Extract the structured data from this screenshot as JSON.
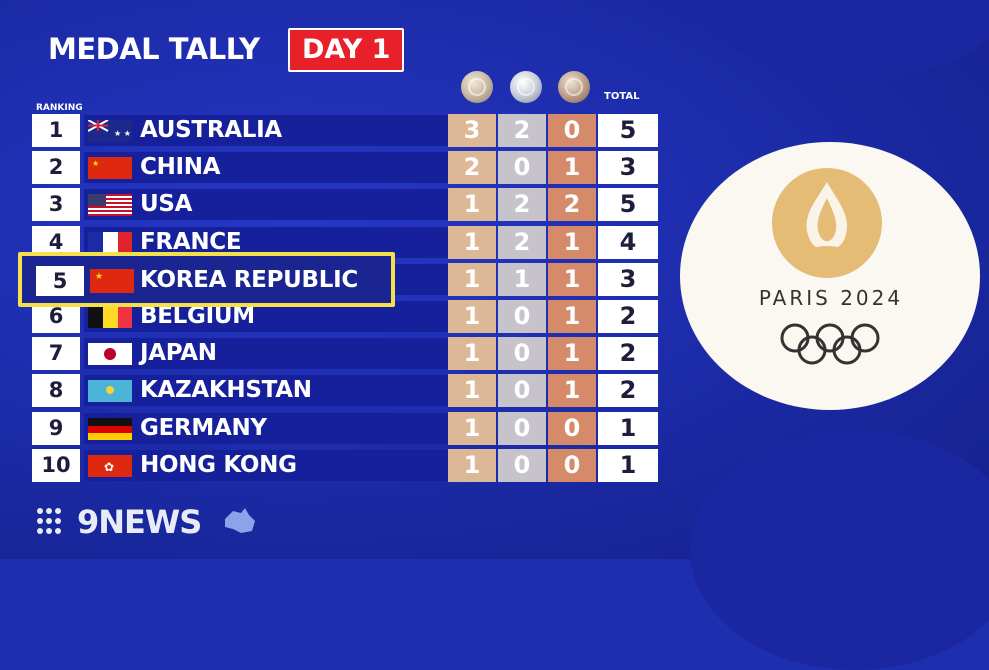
{
  "header": {
    "title": "MEDAL TALLY",
    "day": "DAY 1"
  },
  "columns": {
    "ranking": "RANKING",
    "total": "TOTAL"
  },
  "medal_icons": [
    "gold-medal-icon",
    "silver-medal-icon",
    "bronze-medal-icon"
  ],
  "colors": {
    "gold": "#dcb897",
    "silver": "#c7c3cb",
    "bronze": "#d58a6a",
    "highlight": "#f4e04a",
    "badge": "#e8202a"
  },
  "rows": [
    {
      "rank": "1",
      "country": "AUSTRALIA",
      "gold": "3",
      "silver": "2",
      "bronze": "0",
      "total": "5"
    },
    {
      "rank": "2",
      "country": "CHINA",
      "gold": "2",
      "silver": "0",
      "bronze": "1",
      "total": "3"
    },
    {
      "rank": "3",
      "country": "USA",
      "gold": "1",
      "silver": "2",
      "bronze": "2",
      "total": "5"
    },
    {
      "rank": "4",
      "country": "FRANCE",
      "gold": "1",
      "silver": "2",
      "bronze": "1",
      "total": "4"
    },
    {
      "rank": "5",
      "country": "KOREA REPUBLIC",
      "gold": "1",
      "silver": "1",
      "bronze": "1",
      "total": "3"
    },
    {
      "rank": "6",
      "country": "BELGIUM",
      "gold": "1",
      "silver": "0",
      "bronze": "1",
      "total": "2"
    },
    {
      "rank": "7",
      "country": "JAPAN",
      "gold": "1",
      "silver": "0",
      "bronze": "1",
      "total": "2"
    },
    {
      "rank": "8",
      "country": "KAZAKHSTAN",
      "gold": "1",
      "silver": "0",
      "bronze": "1",
      "total": "2"
    },
    {
      "rank": "9",
      "country": "GERMANY",
      "gold": "1",
      "silver": "0",
      "bronze": "0",
      "total": "1"
    },
    {
      "rank": "10",
      "country": "HONG KONG",
      "gold": "1",
      "silver": "0",
      "bronze": "0",
      "total": "1"
    }
  ],
  "logo": {
    "text": "PARIS 2024"
  },
  "broadcaster": {
    "name": "9NEWS"
  }
}
